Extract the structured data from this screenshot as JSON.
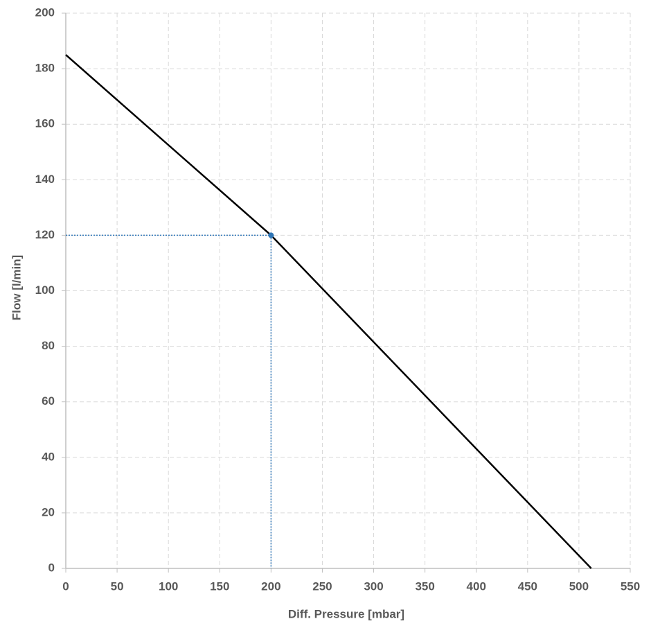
{
  "chart_data": {
    "type": "line",
    "x_label": "Diff. Pressure [mbar]",
    "y_label": "Flow [l/min]",
    "x": [
      0,
      200,
      512
    ],
    "series": [
      {
        "color": "#000000",
        "values": [
          185,
          120,
          0
        ]
      }
    ],
    "highlight": {
      "x": 200,
      "y": 120,
      "color": "#2e75b6"
    },
    "xlim": [
      0,
      550
    ],
    "xticks": [
      0,
      50,
      100,
      150,
      200,
      250,
      300,
      350,
      400,
      450,
      500,
      550
    ],
    "ylim": [
      0,
      200
    ],
    "yticks": [
      0,
      20,
      40,
      60,
      80,
      100,
      120,
      140,
      160,
      180,
      200
    ],
    "grid": true
  }
}
